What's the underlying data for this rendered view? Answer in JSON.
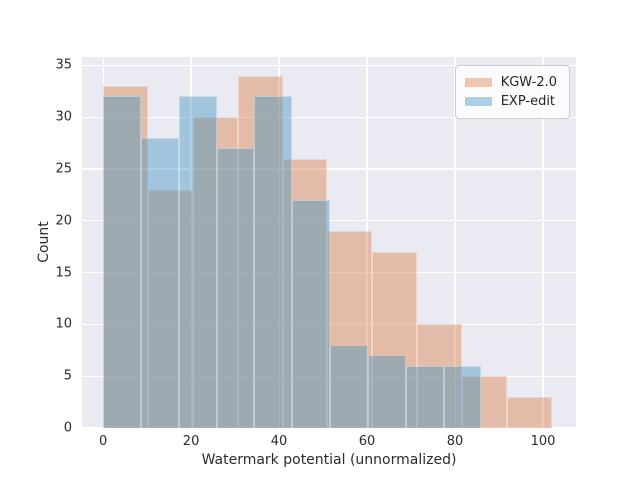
{
  "chart_data": {
    "type": "histogram",
    "xlabel": "Watermark potential (unnormalized)",
    "ylabel": "Count",
    "xlim": [
      -4.8,
      107.5
    ],
    "ylim": [
      0,
      35.8
    ],
    "xticks": [
      0,
      20,
      40,
      60,
      80,
      100
    ],
    "yticks": [
      0,
      5,
      10,
      15,
      20,
      25,
      30,
      35
    ],
    "grid": true,
    "legend_position": "upper right",
    "series": [
      {
        "name": "KGW-2.0",
        "bin_start": 0,
        "bin_width": 10.2,
        "bin_edges": [
          0,
          10.2,
          20.4,
          30.6,
          40.8,
          51.0,
          61.2,
          71.4,
          81.6,
          91.8,
          102.0
        ],
        "counts": [
          33,
          23,
          30,
          34,
          26,
          19,
          17,
          10,
          5,
          3
        ],
        "fill": "rgba(221,132,82,0.45)"
      },
      {
        "name": "EXP-edit",
        "bin_start": 0,
        "bin_width": 8.6,
        "bin_edges": [
          0,
          8.6,
          17.2,
          25.8,
          34.4,
          43.0,
          51.6,
          60.2,
          68.8,
          77.4,
          86.0
        ],
        "counts": [
          32,
          28,
          32,
          27,
          32,
          22,
          8,
          7,
          6,
          6
        ],
        "fill": "rgba(53,143,191,0.40)"
      }
    ],
    "colors": {
      "figure_bg": "#ffffff",
      "axes_bg": "#eaeaf2",
      "grid": "#ffffff",
      "text": "#262626"
    }
  }
}
